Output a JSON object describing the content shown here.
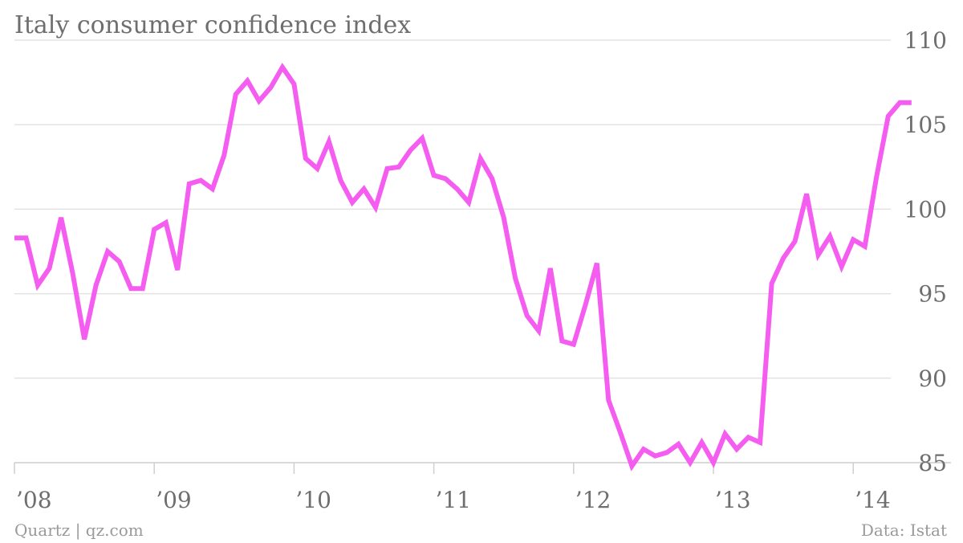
{
  "chart_data": {
    "type": "line",
    "title": "Italy consumer confidence index",
    "xlabel": "",
    "ylabel": "",
    "ylim": [
      85,
      110
    ],
    "yticks": [
      85,
      90,
      95,
      100,
      105,
      110
    ],
    "xticks": [
      {
        "label": "’08",
        "year": 2008
      },
      {
        "label": "’09",
        "year": 2009
      },
      {
        "label": "’10",
        "year": 2010
      },
      {
        "label": "’11",
        "year": 2011
      },
      {
        "label": "’12",
        "year": 2012
      },
      {
        "label": "’13",
        "year": 2013
      },
      {
        "label": "’14",
        "year": 2014
      }
    ],
    "grid": true,
    "color": "#f55cf0",
    "series": [
      {
        "x": [
          "2008-01",
          "2008-02",
          "2008-03",
          "2008-04",
          "2008-05",
          "2008-06",
          "2008-07",
          "2008-08",
          "2008-09",
          "2008-10",
          "2008-11",
          "2008-12",
          "2009-01",
          "2009-02",
          "2009-03",
          "2009-04",
          "2009-05",
          "2009-06",
          "2009-07",
          "2009-08",
          "2009-09",
          "2009-10",
          "2009-11",
          "2009-12",
          "2010-01",
          "2010-02",
          "2010-03",
          "2010-04",
          "2010-05",
          "2010-06",
          "2010-07",
          "2010-08",
          "2010-09",
          "2010-10",
          "2010-11",
          "2010-12",
          "2011-01",
          "2011-02",
          "2011-03",
          "2011-04",
          "2011-05",
          "2011-06",
          "2011-07",
          "2011-08",
          "2011-09",
          "2011-10",
          "2011-11",
          "2011-12",
          "2012-01",
          "2012-02",
          "2012-03",
          "2012-04",
          "2012-05",
          "2012-06",
          "2012-07",
          "2012-08",
          "2012-09",
          "2012-10",
          "2012-11",
          "2012-12",
          "2013-01",
          "2013-02",
          "2013-03",
          "2013-04",
          "2013-05",
          "2013-06",
          "2013-07",
          "2013-08",
          "2013-09",
          "2013-10",
          "2013-11",
          "2013-12",
          "2014-01",
          "2014-02",
          "2014-03",
          "2014-04",
          "2014-05",
          "2014-06"
        ],
        "values": [
          98.3,
          98.3,
          95.5,
          96.5,
          99.5,
          96.2,
          92.3,
          95.5,
          97.5,
          96.9,
          95.3,
          95.3,
          98.8,
          99.2,
          96.4,
          101.5,
          101.7,
          101.2,
          103.2,
          106.8,
          107.6,
          106.4,
          107.2,
          108.4,
          107.4,
          103.0,
          102.4,
          104.0,
          101.7,
          100.4,
          101.2,
          100.1,
          102.4,
          102.5,
          103.5,
          104.2,
          102.0,
          101.8,
          101.2,
          100.4,
          103.0,
          101.8,
          99.5,
          95.9,
          93.7,
          92.8,
          96.5,
          92.2,
          92.0,
          94.3,
          96.8,
          88.7,
          86.8,
          84.8,
          85.8,
          85.4,
          85.6,
          86.1,
          85.0,
          86.2,
          85.0,
          86.7,
          85.8,
          86.5,
          86.2,
          95.6,
          97.1,
          98.1,
          100.9,
          97.3,
          98.4,
          96.6,
          98.2,
          97.8,
          101.9,
          105.5,
          106.3,
          106.3
        ]
      }
    ]
  },
  "footer": {
    "source_left": "Quartz | qz.com",
    "source_right": "Data: Istat"
  }
}
